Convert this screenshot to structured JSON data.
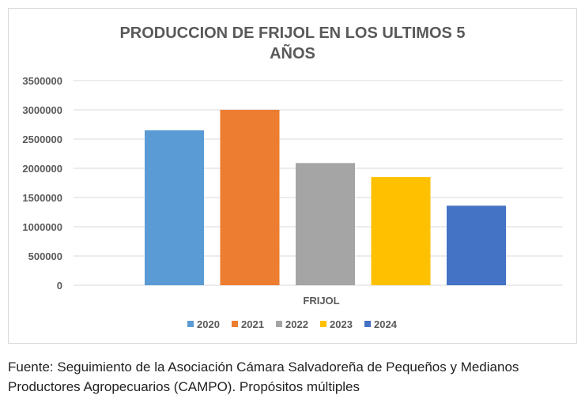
{
  "chart_data": {
    "type": "bar",
    "title_lines": [
      "PRODUCCION DE FRIJOL EN LOS ULTIMOS 5",
      "AÑOS"
    ],
    "categories": [
      "FRIJOL"
    ],
    "series": [
      {
        "name": "2020",
        "color": "#5b9bd5",
        "values": [
          2650000
        ]
      },
      {
        "name": "2021",
        "color": "#ed7d31",
        "values": [
          3000000
        ]
      },
      {
        "name": "2022",
        "color": "#a5a5a5",
        "values": [
          2090000
        ]
      },
      {
        "name": "2023",
        "color": "#ffc000",
        "values": [
          1850000
        ]
      },
      {
        "name": "2024",
        "color": "#4472c4",
        "values": [
          1360000
        ]
      }
    ],
    "y_ticks": [
      "0",
      "500000",
      "1000000",
      "1500000",
      "2000000",
      "2500000",
      "3000000",
      "3500000"
    ],
    "ylim": [
      0,
      3500000
    ],
    "grid": true,
    "legend_position": "bottom"
  },
  "source_note": {
    "line1": "Fuente: Seguimiento de la Asociación Cámara Salvadoreña de Pequeños y Medianos",
    "line2": "Productores Agropecuarios (CAMPO).  Propósitos múltiples"
  }
}
